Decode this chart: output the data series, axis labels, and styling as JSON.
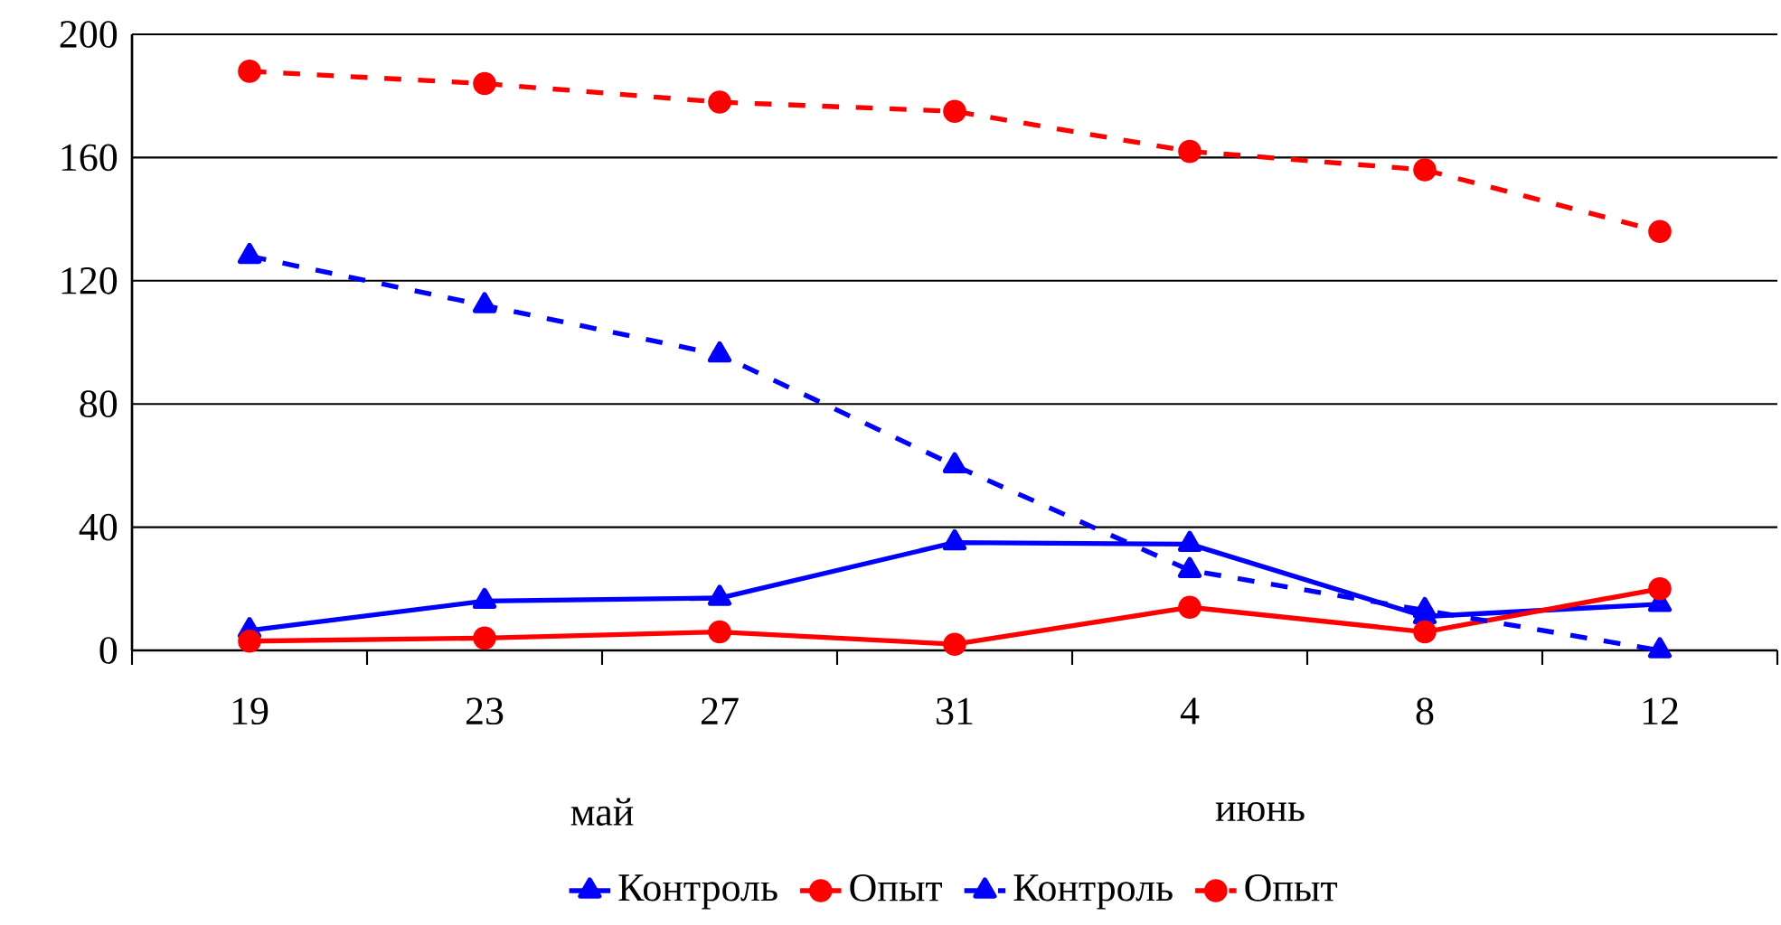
{
  "chart_data": {
    "type": "line",
    "categories": [
      "19",
      "23",
      "27",
      "31",
      "4",
      "8",
      "12"
    ],
    "ylim": [
      0,
      200
    ],
    "yticks": [
      0,
      40,
      80,
      120,
      160,
      200
    ],
    "grid": "y",
    "legend": "bottom",
    "annotations": [
      "май",
      "июнь"
    ],
    "series": [
      {
        "name": "Контроль",
        "color": "#0000ff",
        "marker": "triangle",
        "line_style": "solid",
        "values": [
          6.5,
          16,
          17,
          35,
          34.5,
          11,
          15
        ]
      },
      {
        "name": "Опыт",
        "color": "#ff0000",
        "marker": "circle",
        "line_style": "solid",
        "values": [
          3,
          4,
          6,
          2,
          14,
          6,
          20
        ]
      },
      {
        "name": "Контроль",
        "color": "#0000ff",
        "marker": "triangle",
        "line_style": "dashed",
        "values": [
          128,
          112,
          96,
          60,
          26,
          13,
          0
        ]
      },
      {
        "name": "Опыт",
        "color": "#ff0000",
        "marker": "circle",
        "line_style": "dashed",
        "values": [
          188,
          184,
          178,
          175,
          162,
          156,
          136
        ]
      }
    ]
  }
}
